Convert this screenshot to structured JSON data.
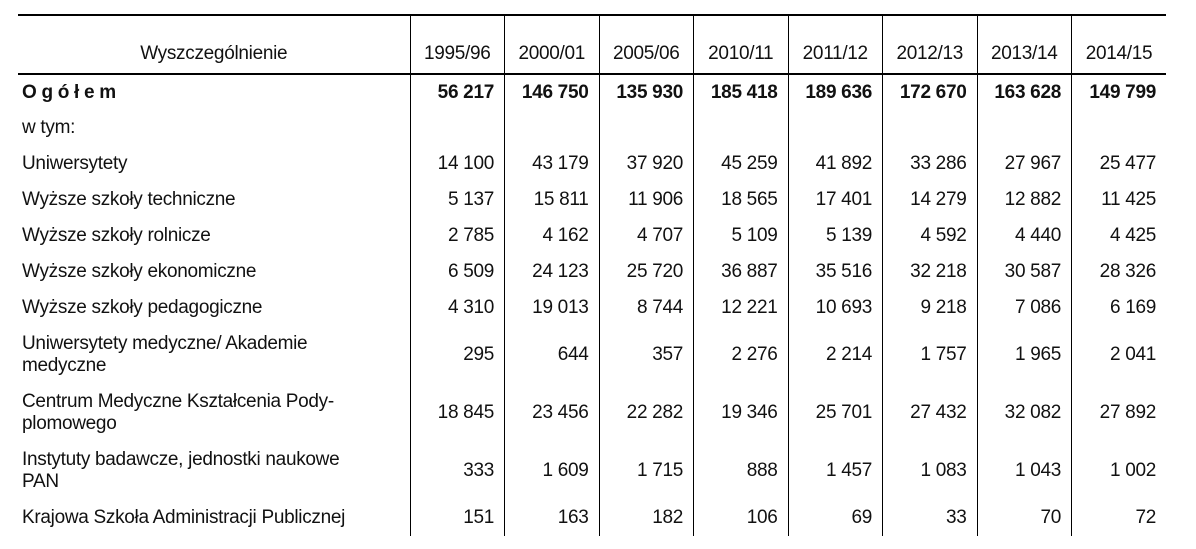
{
  "table": {
    "header": [
      "Wyszczególnienie",
      "1995/96",
      "2000/01",
      "2005/06",
      "2010/11",
      "2011/12",
      "2012/13",
      "2013/14",
      "2014/15"
    ],
    "rows": [
      {
        "label": [
          "O g ó ł e m"
        ],
        "bold": true,
        "values": [
          "56 217",
          "146 750",
          "135 930",
          "185 418",
          "189 636",
          "172 670",
          "163 628",
          "149 799"
        ]
      },
      {
        "label": [
          "w tym:"
        ],
        "values": []
      },
      {
        "label": [
          "Uniwersytety"
        ],
        "values": [
          "14 100",
          "43 179",
          "37 920",
          "45 259",
          "41 892",
          "33 286",
          "27 967",
          "25 477"
        ]
      },
      {
        "label": [
          "Wyższe szkoły techniczne"
        ],
        "values": [
          "5 137",
          "15 811",
          "11 906",
          "18 565",
          "17 401",
          "14 279",
          "12 882",
          "11 425"
        ]
      },
      {
        "label": [
          "Wyższe szkoły rolnicze"
        ],
        "values": [
          "2 785",
          "4 162",
          "4 707",
          "5 109",
          "5 139",
          "4 592",
          "4 440",
          "4 425"
        ]
      },
      {
        "label": [
          "Wyższe szkoły ekonomiczne"
        ],
        "values": [
          "6 509",
          "24 123",
          "25 720",
          "36 887",
          "35 516",
          "32 218",
          "30 587",
          "28 326"
        ]
      },
      {
        "label": [
          "Wyższe szkoły pedagogiczne"
        ],
        "values": [
          "4 310",
          "19 013",
          "8 744",
          "12 221",
          "10 693",
          "9 218",
          "7 086",
          "6 169"
        ]
      },
      {
        "label": [
          "Uniwersytety medyczne/ Akademie",
          "medyczne"
        ],
        "values": [
          "295",
          "644",
          "357",
          "2 276",
          "2 214",
          "1 757",
          "1 965",
          "2 041"
        ]
      },
      {
        "label": [
          "Centrum Medyczne Kształcenia Pody-",
          "plomowego"
        ],
        "values": [
          "18 845",
          "23 456",
          "22 282",
          "19 346",
          "25 701",
          "27 432",
          "32 082",
          "27 892"
        ]
      },
      {
        "label": [
          "Instytuty badawcze, jednostki naukowe",
          "PAN"
        ],
        "values": [
          "333",
          "1 609",
          "1 715",
          "888",
          "1 457",
          "1 083",
          "1 043",
          "1 002"
        ]
      },
      {
        "label": [
          "Krajowa Szkoła Administracji Publicznej"
        ],
        "values": [
          "151",
          "163",
          "182",
          "106",
          "69",
          "33",
          "70",
          "72"
        ]
      }
    ]
  }
}
